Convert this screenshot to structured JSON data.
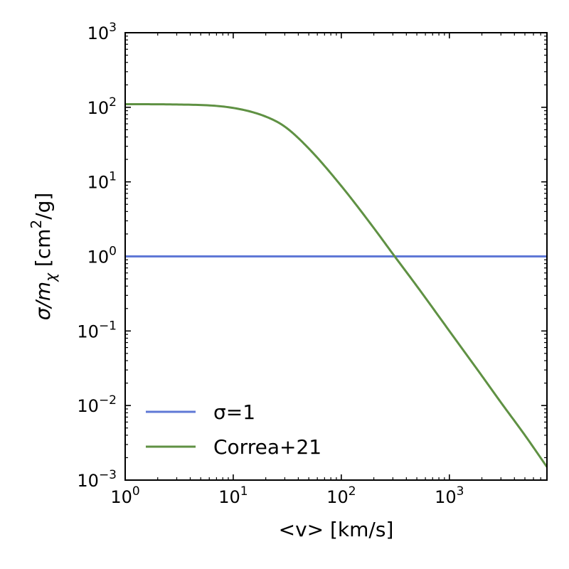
{
  "chart_data": {
    "type": "line",
    "title": "",
    "xlabel": "<v> [km/s]",
    "ylabel": "σ/m_χ [cm²/g]",
    "xscale": "log",
    "yscale": "log",
    "xlim": [
      1,
      8000
    ],
    "ylim": [
      0.001,
      1000
    ],
    "x_ticks": [
      {
        "value": 1,
        "base": "10",
        "exp": "0"
      },
      {
        "value": 10,
        "base": "10",
        "exp": "1"
      },
      {
        "value": 100,
        "base": "10",
        "exp": "2"
      },
      {
        "value": 1000,
        "base": "10",
        "exp": "3"
      }
    ],
    "y_ticks": [
      {
        "value": 0.001,
        "base": "10",
        "exp": "−3"
      },
      {
        "value": 0.01,
        "base": "10",
        "exp": "−2"
      },
      {
        "value": 0.1,
        "base": "10",
        "exp": "−1"
      },
      {
        "value": 1,
        "base": "10",
        "exp": "0"
      },
      {
        "value": 10,
        "base": "10",
        "exp": "1"
      },
      {
        "value": 100,
        "base": "10",
        "exp": "2"
      },
      {
        "value": 1000,
        "base": "10",
        "exp": "3"
      }
    ],
    "grid": false,
    "legend_position": "lower-left",
    "series": [
      {
        "name": "σ=1",
        "color": "#5f78d6",
        "x": [
          1,
          8000
        ],
        "y": [
          1,
          1
        ]
      },
      {
        "name": "Correa+21",
        "color": "#5f9143",
        "x": [
          1,
          3,
          10,
          20,
          30,
          50,
          100,
          200,
          300,
          500,
          1000,
          2000,
          3000,
          5000,
          8000
        ],
        "y": [
          110,
          109,
          98,
          75,
          55,
          28,
          8.8,
          2.4,
          1.08,
          0.4,
          0.1,
          0.025,
          0.011,
          0.004,
          0.0015
        ]
      }
    ]
  }
}
